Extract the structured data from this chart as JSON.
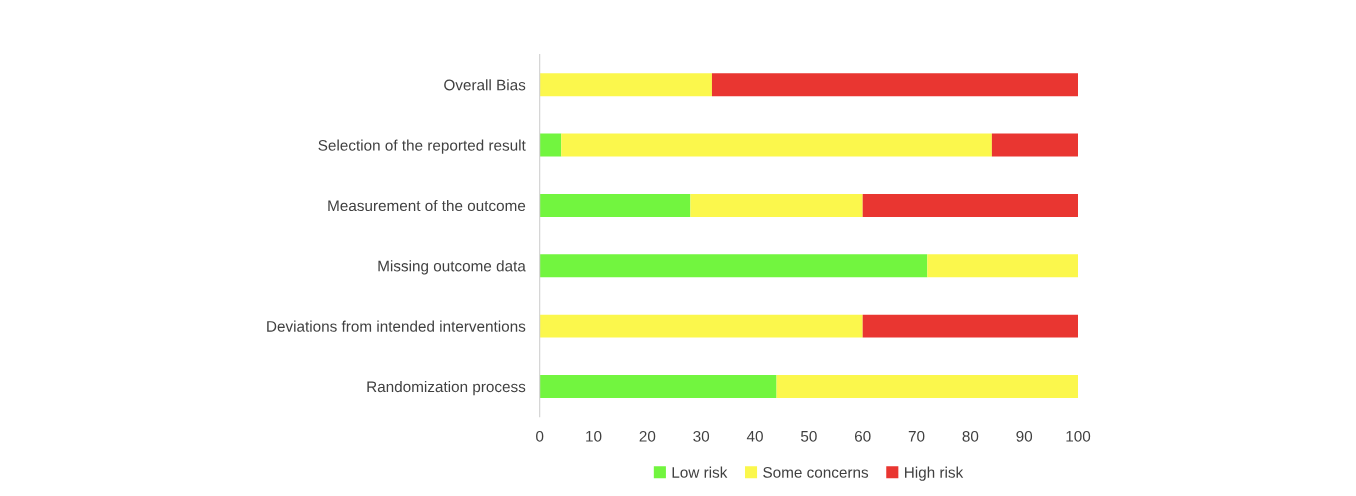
{
  "chart_data": {
    "type": "bar",
    "orientation": "horizontal",
    "stacked": true,
    "categories": [
      "Overall Bias",
      "Selection of the reported result",
      "Measurement of the outcome",
      "Missing outcome data",
      "Deviations from intended interventions",
      "Randomization process"
    ],
    "series": [
      {
        "name": "Low risk",
        "color": "#72f53f",
        "values": [
          0,
          4,
          28,
          72,
          0,
          44
        ]
      },
      {
        "name": "Some concerns",
        "color": "#fbf74c",
        "values": [
          32,
          80,
          32,
          28,
          60,
          56
        ]
      },
      {
        "name": "High risk",
        "color": "#e93631",
        "values": [
          68,
          16,
          40,
          0,
          40,
          0
        ]
      }
    ],
    "xlim": [
      0,
      100
    ],
    "xticks": [
      0,
      10,
      20,
      30,
      40,
      50,
      60,
      70,
      80,
      90,
      100
    ],
    "grid": false,
    "legend": "bottom"
  }
}
